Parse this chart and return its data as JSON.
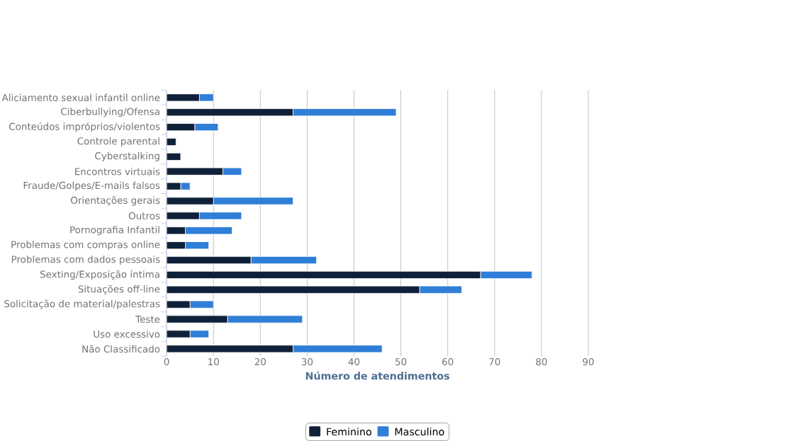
{
  "chart_data": {
    "type": "bar",
    "orientation": "horizontal",
    "stacked": true,
    "xlabel": "Número de atendimentos",
    "categories": [
      "Aliciamento sexual infantil online",
      "Ciberbullying/Ofensa",
      "Conteúdos impróprios/violentos",
      "Controle parental",
      "Cyberstalking",
      "Encontros virtuais",
      "Fraude/Golpes/E-mails falsos",
      "Orientações gerais",
      "Outros",
      "Pornografia Infantil",
      "Problemas com compras online",
      "Problemas com dados pessoais",
      "Sexting/Exposição íntima",
      "Situações off-line",
      "Solicitação de material/palestras",
      "Teste",
      "Uso excessivo",
      "Não Classificado"
    ],
    "series": [
      {
        "name": "Feminino",
        "color": "#0f2139",
        "values": [
          7,
          27,
          6,
          2,
          3,
          12,
          3,
          10,
          7,
          4,
          4,
          18,
          67,
          54,
          5,
          13,
          5,
          27
        ]
      },
      {
        "name": "Masculino",
        "color": "#2f7ed8",
        "values": [
          3,
          22,
          5,
          0,
          0,
          4,
          2,
          17,
          9,
          10,
          5,
          14,
          11,
          9,
          5,
          16,
          4,
          19
        ]
      }
    ],
    "xlim": [
      0,
      90
    ],
    "xticks": [
      0,
      10,
      20,
      30,
      40,
      50,
      60,
      70,
      80,
      90
    ],
    "grid": "x",
    "legend": "bottom"
  }
}
